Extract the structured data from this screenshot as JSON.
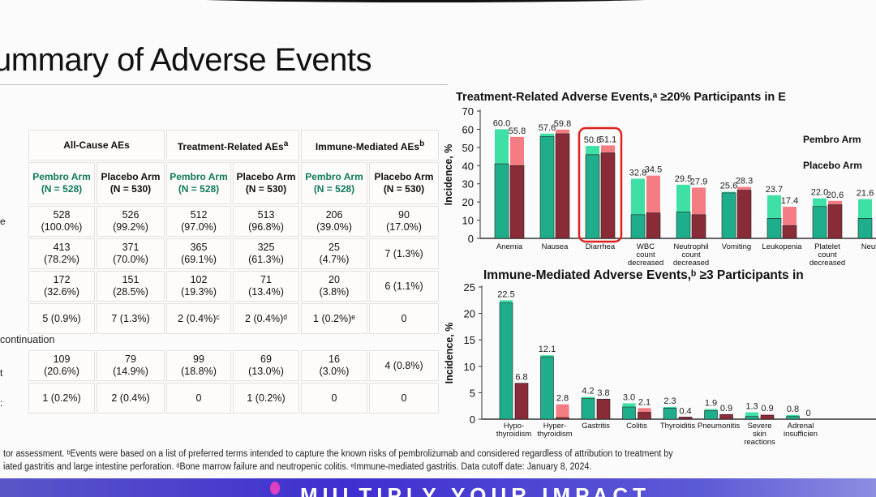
{
  "slide_title": "ummary of Adverse Events",
  "table": {
    "groups": [
      "All-Cause AEs",
      "Treatment-Related AEs",
      "Immune-Mediated AEs"
    ],
    "group_sups": [
      "",
      "a",
      "b"
    ],
    "arms": [
      {
        "name": "Pembro Arm",
        "n": "(N = 528)"
      },
      {
        "name": "Placebo Arm",
        "n": "(N = 530)"
      },
      {
        "name": "Pembro Arm",
        "n": "(N = 528)"
      },
      {
        "name": "Placebo Arm",
        "n": "(N = 530)"
      },
      {
        "name": "Pembro Arm",
        "n": "(N = 528)"
      },
      {
        "name": "Placebo Arm",
        "n": "(N = 530)"
      }
    ],
    "row_stubs": [
      "e",
      "",
      "",
      "",
      "t",
      ":"
    ],
    "section_label": "continuation",
    "rows": [
      [
        "528\n(100.0%)",
        "526\n(99.2%)",
        "512\n(97.0%)",
        "513\n(96.8%)",
        "206\n(39.0%)",
        "90\n(17.0%)"
      ],
      [
        "413\n(78.2%)",
        "371\n(70.0%)",
        "365\n(69.1%)",
        "325\n(61.3%)",
        "25\n(4.7%)",
        "7 (1.3%)"
      ],
      [
        "172\n(32.6%)",
        "151\n(28.5%)",
        "102\n(19.3%)",
        "71\n(13.4%)",
        "20\n(3.8%)",
        "6 (1.1%)"
      ],
      [
        "5 (0.9%)",
        "7 (1.3%)",
        "2 (0.4%)ᶜ",
        "2 (0.4%)ᵈ",
        "1 (0.2%)ᵉ",
        "0"
      ],
      [
        "109\n(20.6%)",
        "79\n(14.9%)",
        "99\n(18.8%)",
        "69\n(13.0%)",
        "16\n(3.0%)",
        "4 (0.8%)"
      ],
      [
        "1 (0.2%)",
        "2 (0.4%)",
        "0",
        "1 (0.2%)",
        "0",
        "0"
      ]
    ]
  },
  "chart_data": [
    {
      "type": "bar",
      "title": "Treatment-Related Adverse Events,ᵃ ≥20% Participants in E",
      "ylabel": "Incidence, %",
      "ylim": [
        0,
        70
      ],
      "yticks": [
        0,
        10,
        20,
        30,
        40,
        50,
        60,
        70
      ],
      "legend": [
        "Pembro Arm",
        "Placebo Arm"
      ],
      "legend_position": "right",
      "highlighted_category": "Diarrhea",
      "categories": [
        "Anemia",
        "Nausea",
        "Diarrhea",
        "WBC count decreased",
        "Neutrophil count decreased",
        "Vomiting",
        "Leukopenia",
        "Platelet count decreased",
        "Neutro"
      ],
      "series": [
        {
          "name": "Pembro Arm",
          "values": [
            60.0,
            57.6,
            50.8,
            32.8,
            29.5,
            25.6,
            23.7,
            22.0,
            21.6
          ],
          "inner_segment": [
            41,
            56,
            46,
            13,
            14.5,
            25,
            11,
            17.5,
            11
          ]
        },
        {
          "name": "Placebo Arm",
          "values": [
            55.8,
            59.8,
            51.1,
            34.5,
            27.9,
            28.3,
            17.4,
            20.6,
            null
          ],
          "inner_segment": [
            40,
            57.5,
            47,
            14,
            13,
            26.5,
            7,
            18.5,
            null
          ]
        }
      ],
      "colors": {
        "pembro_total": "#3ee0a6",
        "pembro_inner": "#1fae8c",
        "placebo_total": "#f47c82",
        "placebo_inner": "#8a2c38",
        "highlight": "#e0201c"
      }
    },
    {
      "type": "bar",
      "title": "Immune-Mediated Adverse Events,ᵇ ≥3 Participants in",
      "ylabel": "Incidence, %",
      "ylim": [
        0,
        25
      ],
      "yticks": [
        0,
        5,
        10,
        15,
        20,
        25
      ],
      "categories": [
        "Hypo-thyroidism",
        "Hyper-thyroidism",
        "Gastritis",
        "Colitis",
        "Thyroiditis",
        "Pneumonitis",
        "Severe skin reactions",
        "Adrenal insufficien"
      ],
      "series": [
        {
          "name": "Pembro Arm",
          "values": [
            22.5,
            12.1,
            4.2,
            3.0,
            2.3,
            1.9,
            1.3,
            0.8
          ],
          "inner_segment": [
            22,
            11.8,
            3.9,
            2.3,
            2.1,
            1.6,
            0.5,
            0.5
          ]
        },
        {
          "name": "Placebo Arm",
          "values": [
            6.8,
            2.8,
            3.8,
            2.1,
            0.4,
            0.9,
            0.9,
            0
          ],
          "inner_segment": [
            6.8,
            0.3,
            3.8,
            1.3,
            0.4,
            0.9,
            0.7,
            0
          ]
        }
      ]
    }
  ],
  "footnotes": [
    "tor assessment. ᵇEvents were based on a list of preferred terms intended to capture the known risks of pembrolizumab and considered regardless of attribution to treatment by",
    "iated gastritis and large intestine perforation. ᵈBone marrow failure and neutropenic colitis. ᵉImmune-mediated gastritis. Data cutoff date: January 8, 2024."
  ],
  "banner_text": "MULTIPLY YOUR IMPACT"
}
